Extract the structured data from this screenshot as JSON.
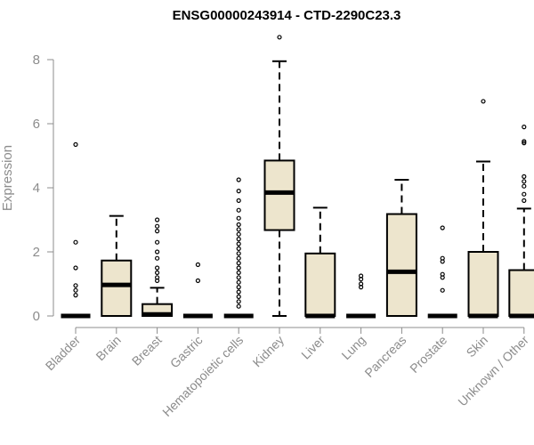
{
  "chart_data": {
    "type": "boxplot",
    "title": "ENSG00000243914 - CTD-2290C23.3",
    "ylabel": "Expression",
    "xlabel": "",
    "ylim": [
      0,
      8.6
    ],
    "yticks": [
      0,
      2,
      4,
      6,
      8
    ],
    "grid": false,
    "legend": "none",
    "box_fill": "#ede5cd",
    "categories": [
      "Bladder",
      "Brain",
      "Breast",
      "Gastric",
      "Hematopoietic cells",
      "Kidney",
      "Liver",
      "Lung",
      "Pancreas",
      "Prostate",
      "Skin",
      "Unknown / Other"
    ],
    "boxes": [
      {
        "q1": 0,
        "median": 0,
        "q3": 0,
        "whisker_low": 0,
        "whisker_high": 0,
        "outliers": [
          0.65,
          0.8,
          0.95,
          1.5,
          2.3,
          5.35
        ]
      },
      {
        "q1": 0,
        "median": 0.97,
        "q3": 1.73,
        "whisker_low": 0,
        "whisker_high": 3.12,
        "outliers": []
      },
      {
        "q1": 0,
        "median": 0.05,
        "q3": 0.37,
        "whisker_low": 0,
        "whisker_high": 0.88,
        "outliers": [
          1.1,
          1.2,
          1.35,
          1.5,
          1.8,
          2.0,
          2.3,
          2.65,
          2.8,
          3.0
        ]
      },
      {
        "q1": 0,
        "median": 0,
        "q3": 0,
        "whisker_low": 0,
        "whisker_high": 0,
        "outliers": [
          1.1,
          1.6
        ]
      },
      {
        "q1": 0,
        "median": 0,
        "q3": 0,
        "whisker_low": 0,
        "whisker_high": 0,
        "outliers": [
          0.3,
          0.45,
          0.6,
          0.75,
          0.9,
          1.05,
          1.2,
          1.35,
          1.5,
          1.65,
          1.8,
          1.95,
          2.1,
          2.25,
          2.4,
          2.55,
          2.7,
          2.85,
          3.05,
          3.3,
          3.6,
          3.9,
          4.25
        ]
      },
      {
        "q1": 2.68,
        "median": 3.85,
        "q3": 4.85,
        "whisker_low": 0,
        "whisker_high": 7.95,
        "outliers": [
          8.7
        ]
      },
      {
        "q1": 0,
        "median": 0,
        "q3": 1.95,
        "whisker_low": 0,
        "whisker_high": 3.38,
        "outliers": []
      },
      {
        "q1": 0,
        "median": 0,
        "q3": 0,
        "whisker_low": 0,
        "whisker_high": 0,
        "outliers": [
          0.9,
          1.0,
          1.15,
          1.25
        ]
      },
      {
        "q1": 0,
        "median": 1.38,
        "q3": 3.18,
        "whisker_low": 0,
        "whisker_high": 4.25,
        "outliers": []
      },
      {
        "q1": 0,
        "median": 0,
        "q3": 0,
        "whisker_low": 0,
        "whisker_high": 0,
        "outliers": [
          0.8,
          1.2,
          1.3,
          1.7,
          1.8,
          2.75
        ]
      },
      {
        "q1": 0,
        "median": 0,
        "q3": 2.0,
        "whisker_low": 0,
        "whisker_high": 4.82,
        "outliers": [
          6.7
        ]
      },
      {
        "q1": 0,
        "median": 0,
        "q3": 1.43,
        "whisker_low": 0,
        "whisker_high": 3.35,
        "outliers": [
          3.6,
          3.8,
          4.05,
          4.2,
          4.35,
          5.4,
          5.45,
          5.9
        ]
      }
    ]
  }
}
